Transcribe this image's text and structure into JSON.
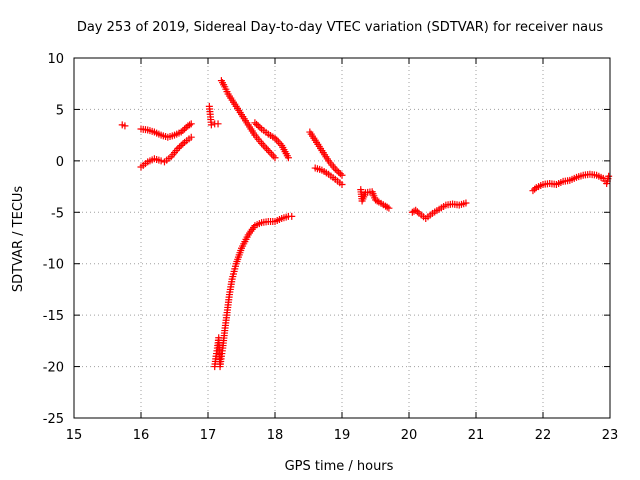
{
  "chart_data": {
    "type": "scatter",
    "title": "Day 253 of 2019, Sidereal Day-to-day VTEC variation (SDTVAR) for receiver naus",
    "xlabel": "GPS time / hours",
    "ylabel": "SDTVAR / TECUs",
    "xlim": [
      15,
      23
    ],
    "ylim": [
      -25,
      10
    ],
    "xticks": [
      15,
      16,
      17,
      18,
      19,
      20,
      21,
      22,
      23
    ],
    "yticks": [
      10,
      5,
      0,
      -5,
      -10,
      -15,
      -20,
      -25
    ],
    "grid": true,
    "marker": "+",
    "color": "#ff0000",
    "series": [
      {
        "name": "s1",
        "points": [
          [
            15.72,
            3.5
          ],
          [
            15.76,
            3.4
          ]
        ]
      },
      {
        "name": "s2",
        "points": [
          [
            16.0,
            3.1
          ],
          [
            16.1,
            3.0
          ],
          [
            16.2,
            2.8
          ],
          [
            16.3,
            2.5
          ],
          [
            16.4,
            2.3
          ],
          [
            16.5,
            2.5
          ],
          [
            16.6,
            2.8
          ],
          [
            16.7,
            3.4
          ],
          [
            16.75,
            3.6
          ]
        ]
      },
      {
        "name": "s3",
        "points": [
          [
            16.0,
            -0.6
          ],
          [
            16.1,
            -0.1
          ],
          [
            16.2,
            0.2
          ],
          [
            16.3,
            0.0
          ],
          [
            16.35,
            -0.1
          ],
          [
            16.45,
            0.4
          ],
          [
            16.55,
            1.2
          ],
          [
            16.65,
            1.8
          ],
          [
            16.75,
            2.3
          ]
        ]
      },
      {
        "name": "s4",
        "points": [
          [
            17.02,
            5.3
          ],
          [
            17.05,
            3.5
          ],
          [
            17.1,
            3.6
          ],
          [
            17.15,
            3.6
          ]
        ]
      },
      {
        "name": "s5",
        "points": [
          [
            17.2,
            7.8
          ],
          [
            17.25,
            7.2
          ],
          [
            17.3,
            6.5
          ],
          [
            17.4,
            5.5
          ],
          [
            17.5,
            4.5
          ],
          [
            17.6,
            3.5
          ],
          [
            17.7,
            2.5
          ],
          [
            17.8,
            1.7
          ],
          [
            17.9,
            1.0
          ],
          [
            18.0,
            0.3
          ]
        ]
      },
      {
        "name": "s6",
        "points": [
          [
            17.7,
            3.7
          ],
          [
            17.8,
            3.1
          ],
          [
            17.9,
            2.6
          ],
          [
            18.0,
            2.2
          ],
          [
            18.1,
            1.5
          ],
          [
            18.2,
            0.3
          ]
        ]
      },
      {
        "name": "s7",
        "points": [
          [
            17.1,
            -20.0
          ],
          [
            17.12,
            -19.0
          ],
          [
            17.14,
            -18.2
          ],
          [
            17.16,
            -17.2
          ],
          [
            17.18,
            -20.0
          ],
          [
            17.2,
            -19.0
          ],
          [
            17.22,
            -18.2
          ],
          [
            17.25,
            -16.5
          ],
          [
            17.28,
            -15.0
          ],
          [
            17.32,
            -13.0
          ],
          [
            17.36,
            -11.5
          ],
          [
            17.42,
            -10.0
          ],
          [
            17.5,
            -8.5
          ],
          [
            17.6,
            -7.2
          ],
          [
            17.7,
            -6.3
          ],
          [
            17.8,
            -6.0
          ],
          [
            17.9,
            -5.9
          ],
          [
            18.0,
            -5.9
          ],
          [
            18.1,
            -5.6
          ],
          [
            18.2,
            -5.4
          ],
          [
            18.25,
            -5.4
          ]
        ]
      },
      {
        "name": "s8",
        "points": [
          [
            18.52,
            2.8
          ],
          [
            18.6,
            2.0
          ],
          [
            18.7,
            1.0
          ],
          [
            18.8,
            0.0
          ],
          [
            18.9,
            -0.8
          ],
          [
            19.0,
            -1.4
          ]
        ]
      },
      {
        "name": "s9",
        "points": [
          [
            18.6,
            -0.7
          ],
          [
            18.7,
            -0.9
          ],
          [
            18.8,
            -1.3
          ],
          [
            18.9,
            -1.8
          ],
          [
            19.0,
            -2.3
          ]
        ]
      },
      {
        "name": "s10",
        "points": [
          [
            19.28,
            -2.8
          ],
          [
            19.3,
            -3.9
          ],
          [
            19.35,
            -3.1
          ],
          [
            19.45,
            -3.0
          ],
          [
            19.5,
            -3.8
          ],
          [
            19.55,
            -4.0
          ],
          [
            19.65,
            -4.4
          ],
          [
            19.7,
            -4.6
          ]
        ]
      },
      {
        "name": "s11",
        "points": [
          [
            20.05,
            -5.0
          ],
          [
            20.1,
            -4.8
          ],
          [
            20.15,
            -5.1
          ],
          [
            20.25,
            -5.6
          ],
          [
            20.35,
            -5.1
          ],
          [
            20.45,
            -4.7
          ],
          [
            20.55,
            -4.3
          ],
          [
            20.65,
            -4.2
          ],
          [
            20.75,
            -4.3
          ],
          [
            20.85,
            -4.1
          ]
        ]
      },
      {
        "name": "s12",
        "points": [
          [
            21.85,
            -2.9
          ],
          [
            21.9,
            -2.6
          ],
          [
            22.0,
            -2.3
          ],
          [
            22.1,
            -2.2
          ],
          [
            22.2,
            -2.3
          ],
          [
            22.3,
            -2.0
          ],
          [
            22.4,
            -1.9
          ],
          [
            22.5,
            -1.6
          ],
          [
            22.6,
            -1.4
          ],
          [
            22.7,
            -1.3
          ],
          [
            22.8,
            -1.4
          ],
          [
            22.9,
            -1.7
          ],
          [
            22.95,
            -2.2
          ],
          [
            22.98,
            -1.5
          ]
        ]
      }
    ]
  }
}
